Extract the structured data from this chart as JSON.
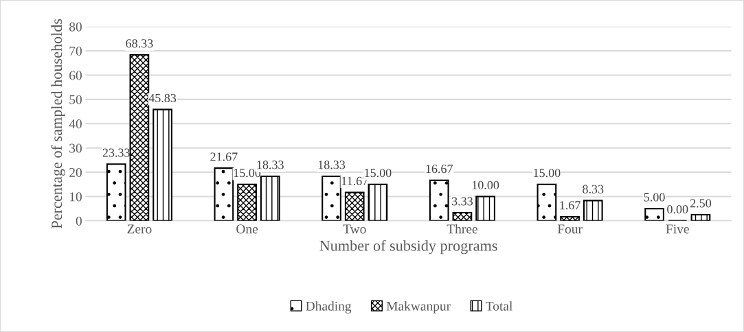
{
  "chart_data": {
    "type": "bar",
    "xlabel": "Number of subsidy programs",
    "ylabel": "Percentage of sampled households",
    "categories": [
      "Zero",
      "One",
      "Two",
      "Three",
      "Four",
      "Five"
    ],
    "series": [
      {
        "name": "Dhading",
        "color": "#000000",
        "values": [
          23.33,
          21.67,
          18.33,
          16.67,
          15.0,
          5.0
        ],
        "value_labels": [
          "23.33",
          "21.67",
          "18.33",
          "16.67",
          "15.00",
          "5.00"
        ]
      },
      {
        "name": "Makwanpur",
        "color": "#000000",
        "values": [
          68.33,
          15.0,
          11.67,
          3.33,
          1.67,
          0.0
        ],
        "value_labels": [
          "68.33",
          "15.00",
          "11.67",
          "3.33",
          "1.67",
          "0.00"
        ]
      },
      {
        "name": "Total",
        "color": "#000000",
        "values": [
          45.83,
          18.33,
          15.0,
          10.0,
          8.33,
          2.5
        ],
        "value_labels": [
          "45.83",
          "18.33",
          "15.00",
          "10.00",
          "8.33",
          "2.50"
        ]
      }
    ],
    "ylim": [
      0,
      80
    ],
    "yticks": [
      0,
      10,
      20,
      30,
      40,
      50,
      60,
      70,
      80
    ],
    "grid": "y",
    "legend": "bottom"
  }
}
